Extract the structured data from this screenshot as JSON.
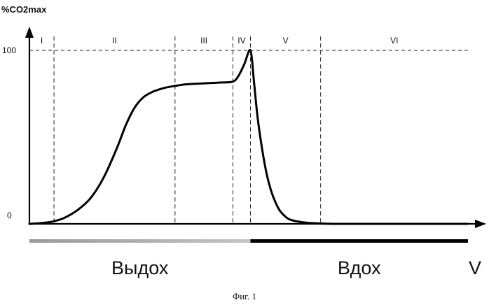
{
  "chart_data": {
    "type": "line",
    "ylabel": "%CO2max",
    "xlabel": "V",
    "y_ticks": [
      "100",
      "0"
    ],
    "ylim": [
      0,
      100
    ],
    "xlim": [
      0,
      100
    ],
    "grid": false,
    "phases": [
      {
        "label": "I",
        "start": 0,
        "end": 5.6
      },
      {
        "label": "II",
        "start": 5.6,
        "end": 33.2
      },
      {
        "label": "III",
        "start": 33.2,
        "end": 46.4
      },
      {
        "label": "IV",
        "start": 46.4,
        "end": 50.4
      },
      {
        "label": "V",
        "start": 50.4,
        "end": 66.4
      },
      {
        "label": "VI",
        "start": 66.4,
        "end": 100
      }
    ],
    "series": [
      {
        "x": [
          0,
          2,
          4,
          5.6,
          8,
          11,
          14,
          17,
          20,
          22,
          24,
          26,
          28,
          29.6,
          31,
          33.2,
          36,
          40,
          44,
          46.4,
          47.6,
          49,
          50.4,
          51.2,
          52,
          53,
          54,
          55,
          56,
          57,
          58,
          59,
          60,
          62,
          64,
          66.4,
          70,
          80,
          90,
          100
        ],
        "y": [
          0,
          0.3,
          0.8,
          1.5,
          3.5,
          8,
          15,
          27,
          44,
          57,
          67,
          73,
          76,
          77.5,
          78.5,
          79.5,
          80.5,
          81,
          81.5,
          82,
          85,
          92,
          100,
          82,
          62,
          44,
          30,
          20,
          13,
          8,
          5,
          3,
          2,
          1,
          0.5,
          0.2,
          0,
          0,
          0,
          0
        ]
      }
    ],
    "phase_bar": [
      {
        "label": "Выдох",
        "start": 0,
        "end": 50.4,
        "color": "#aaaaaa"
      },
      {
        "label": "Вдох",
        "start": 50.4,
        "end": 100,
        "color": "#000000"
      }
    ]
  },
  "caption": "Фиг. 1"
}
